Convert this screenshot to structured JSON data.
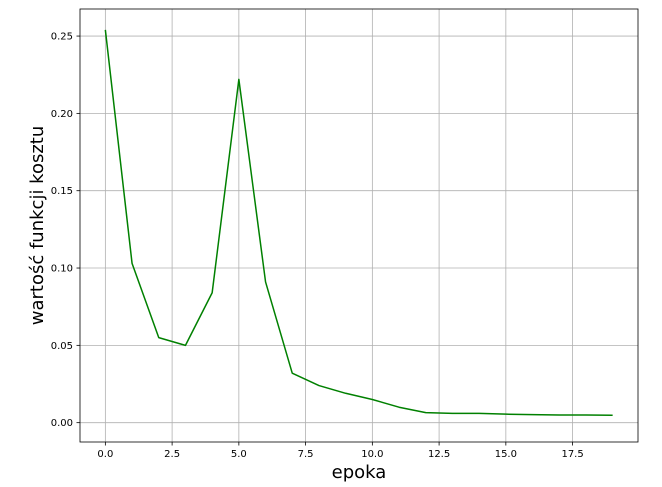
{
  "chart_data": {
    "type": "line",
    "xlabel": "epoka",
    "ylabel": "wartość funkcji kosztu",
    "xlim": [
      -0.95,
      19.95
    ],
    "ylim": [
      -0.0125,
      0.2675
    ],
    "x_ticks": [
      0.0,
      2.5,
      5.0,
      7.5,
      10.0,
      12.5,
      15.0,
      17.5
    ],
    "x_tick_labels": [
      "0.0",
      "2.5",
      "5.0",
      "7.5",
      "10.0",
      "12.5",
      "15.0",
      "17.5"
    ],
    "y_ticks": [
      0.0,
      0.05,
      0.1,
      0.15,
      0.2,
      0.25
    ],
    "y_tick_labels": [
      "0.00",
      "0.05",
      "0.10",
      "0.15",
      "0.20",
      "0.25"
    ],
    "grid": true,
    "line_color": "#008000",
    "series": [
      {
        "x": [
          0,
          1,
          2,
          3,
          4,
          5,
          6,
          7,
          8,
          9,
          10,
          11,
          12,
          13,
          14,
          15,
          16,
          17,
          18,
          19
        ],
        "values": [
          0.254,
          0.103,
          0.055,
          0.05,
          0.084,
          0.222,
          0.091,
          0.032,
          0.024,
          0.019,
          0.015,
          0.01,
          0.0065,
          0.006,
          0.006,
          0.0055,
          0.0052,
          0.005,
          0.005,
          0.0048
        ]
      }
    ]
  }
}
